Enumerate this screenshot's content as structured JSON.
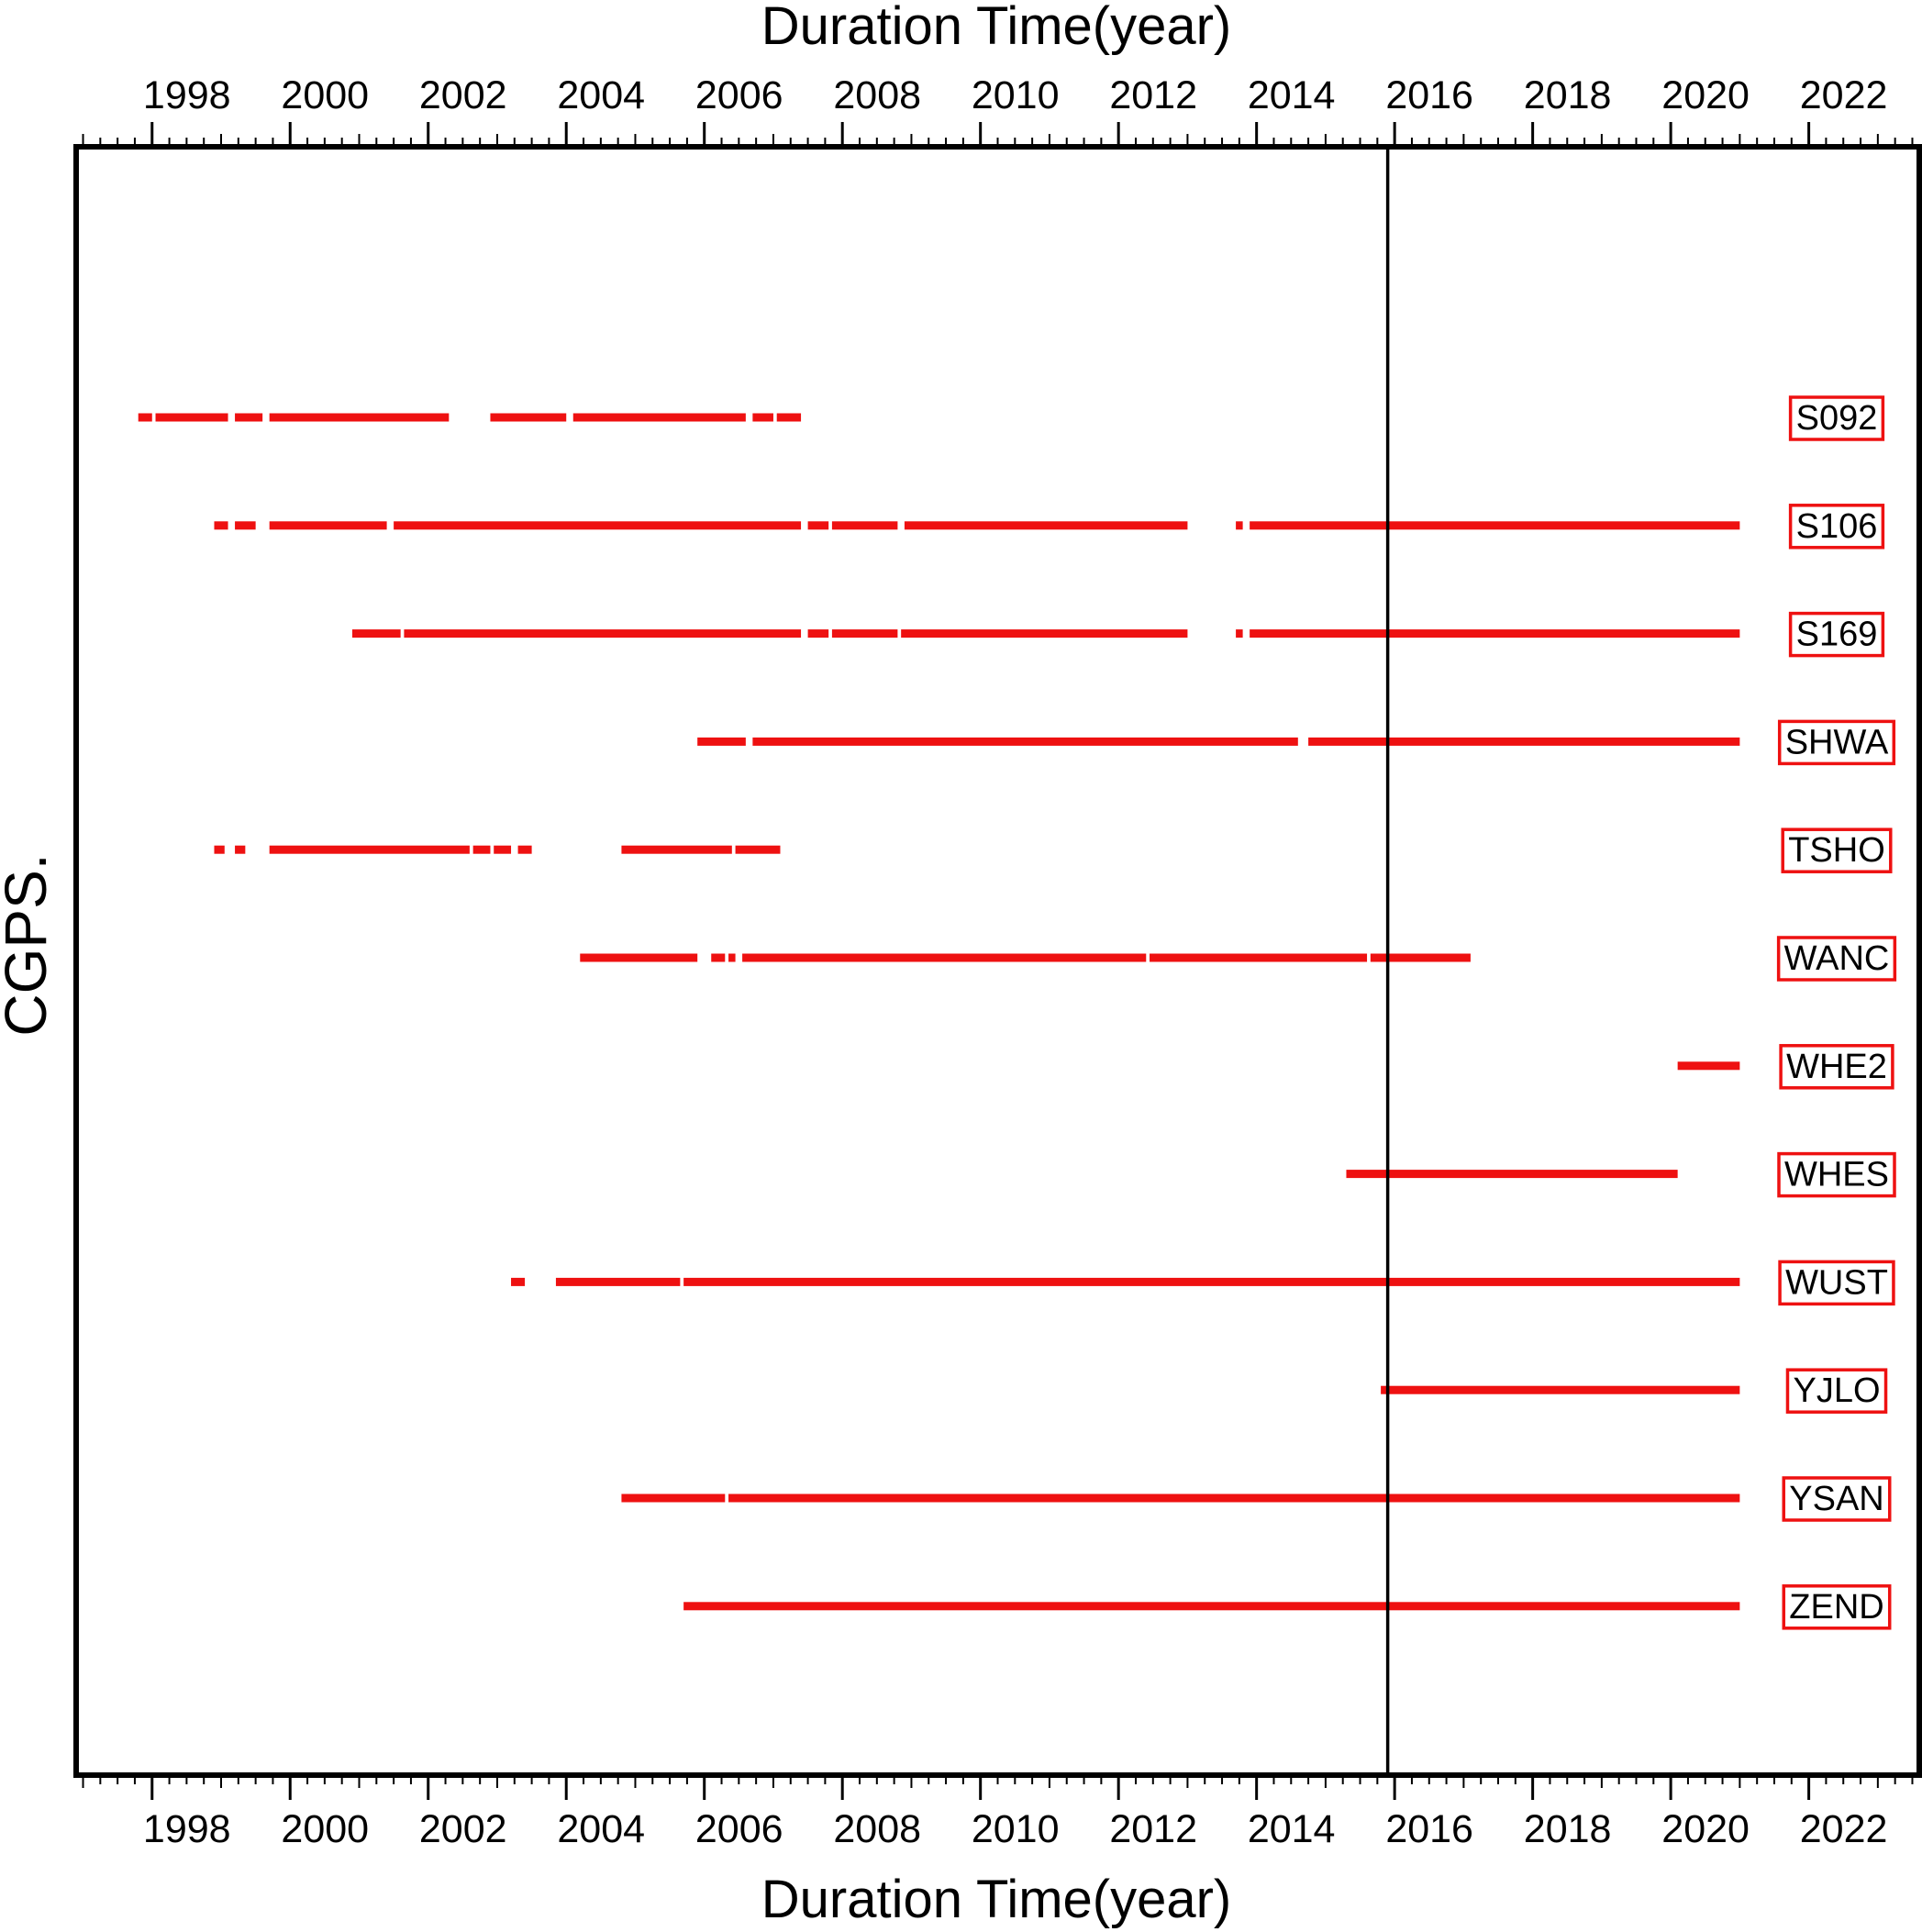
{
  "chart_data": {
    "type": "timeline",
    "title_top": "Duration Time(year)",
    "xlabel": "Duration Time(year)",
    "ylabel": "CGPS.",
    "xlim": [
      1996.9,
      2023.6
    ],
    "x_ticks": [
      1998,
      2000,
      2002,
      2004,
      2006,
      2008,
      2010,
      2012,
      2014,
      2016,
      2018,
      2020,
      2022
    ],
    "tick_labels": [
      "1998",
      "2000",
      "2002",
      "2004",
      "2006",
      "2008",
      "2010",
      "2012",
      "2014",
      "2016",
      "2018",
      "2020",
      "2022"
    ],
    "reference_line_x": 2015.9,
    "grid": false,
    "colors": {
      "segments": "#ee1111",
      "label_box": "#ee1111",
      "frame": "#000000"
    },
    "series": [
      {
        "name": "S092",
        "segments": [
          [
            1997.8,
            1998.0
          ],
          [
            1998.05,
            1999.1
          ],
          [
            1999.2,
            1999.6
          ],
          [
            1999.7,
            2002.3
          ],
          [
            2002.9,
            2004.0
          ],
          [
            2004.1,
            2006.6
          ],
          [
            2006.7,
            2007.0
          ],
          [
            2007.05,
            2007.4
          ]
        ]
      },
      {
        "name": "S106",
        "segments": [
          [
            1998.9,
            1999.1
          ],
          [
            1999.2,
            1999.5
          ],
          [
            1999.7,
            2001.4
          ],
          [
            2001.5,
            2007.4
          ],
          [
            2007.5,
            2007.8
          ],
          [
            2007.85,
            2008.8
          ],
          [
            2008.9,
            2013.0
          ],
          [
            2013.7,
            2013.8
          ],
          [
            2013.9,
            2021.0
          ]
        ]
      },
      {
        "name": "S169",
        "segments": [
          [
            2000.9,
            2001.6
          ],
          [
            2001.65,
            2007.4
          ],
          [
            2007.5,
            2007.8
          ],
          [
            2007.85,
            2008.8
          ],
          [
            2008.85,
            2013.0
          ],
          [
            2013.7,
            2013.8
          ],
          [
            2013.9,
            2021.0
          ]
        ]
      },
      {
        "name": "SHWA",
        "segments": [
          [
            2005.9,
            2006.6
          ],
          [
            2006.7,
            2014.6
          ],
          [
            2014.75,
            2021.0
          ]
        ]
      },
      {
        "name": "TSHO",
        "segments": [
          [
            1998.9,
            1999.05
          ],
          [
            1999.2,
            1999.35
          ],
          [
            1999.7,
            2002.6
          ],
          [
            2002.65,
            2002.9
          ],
          [
            2002.95,
            2003.2
          ],
          [
            2003.3,
            2003.5
          ],
          [
            2004.8,
            2006.4
          ],
          [
            2006.45,
            2007.1
          ]
        ]
      },
      {
        "name": "WANC",
        "segments": [
          [
            2004.2,
            2005.9
          ],
          [
            2006.1,
            2006.3
          ],
          [
            2006.35,
            2006.45
          ],
          [
            2006.55,
            2012.4
          ],
          [
            2012.45,
            2015.6
          ],
          [
            2015.65,
            2017.1
          ]
        ]
      },
      {
        "name": "WHE2",
        "segments": [
          [
            2020.1,
            2021.0
          ]
        ]
      },
      {
        "name": "WHES",
        "segments": [
          [
            2015.3,
            2020.1
          ]
        ]
      },
      {
        "name": "WUST",
        "segments": [
          [
            2003.2,
            2003.4
          ],
          [
            2003.85,
            2005.65
          ],
          [
            2005.7,
            2021.0
          ]
        ]
      },
      {
        "name": "YJLO",
        "segments": [
          [
            2015.8,
            2021.0
          ]
        ]
      },
      {
        "name": "YSAN",
        "segments": [
          [
            2004.8,
            2006.3
          ],
          [
            2006.35,
            2021.0
          ]
        ]
      },
      {
        "name": "ZEND",
        "segments": [
          [
            2005.7,
            2021.0
          ]
        ]
      }
    ]
  }
}
